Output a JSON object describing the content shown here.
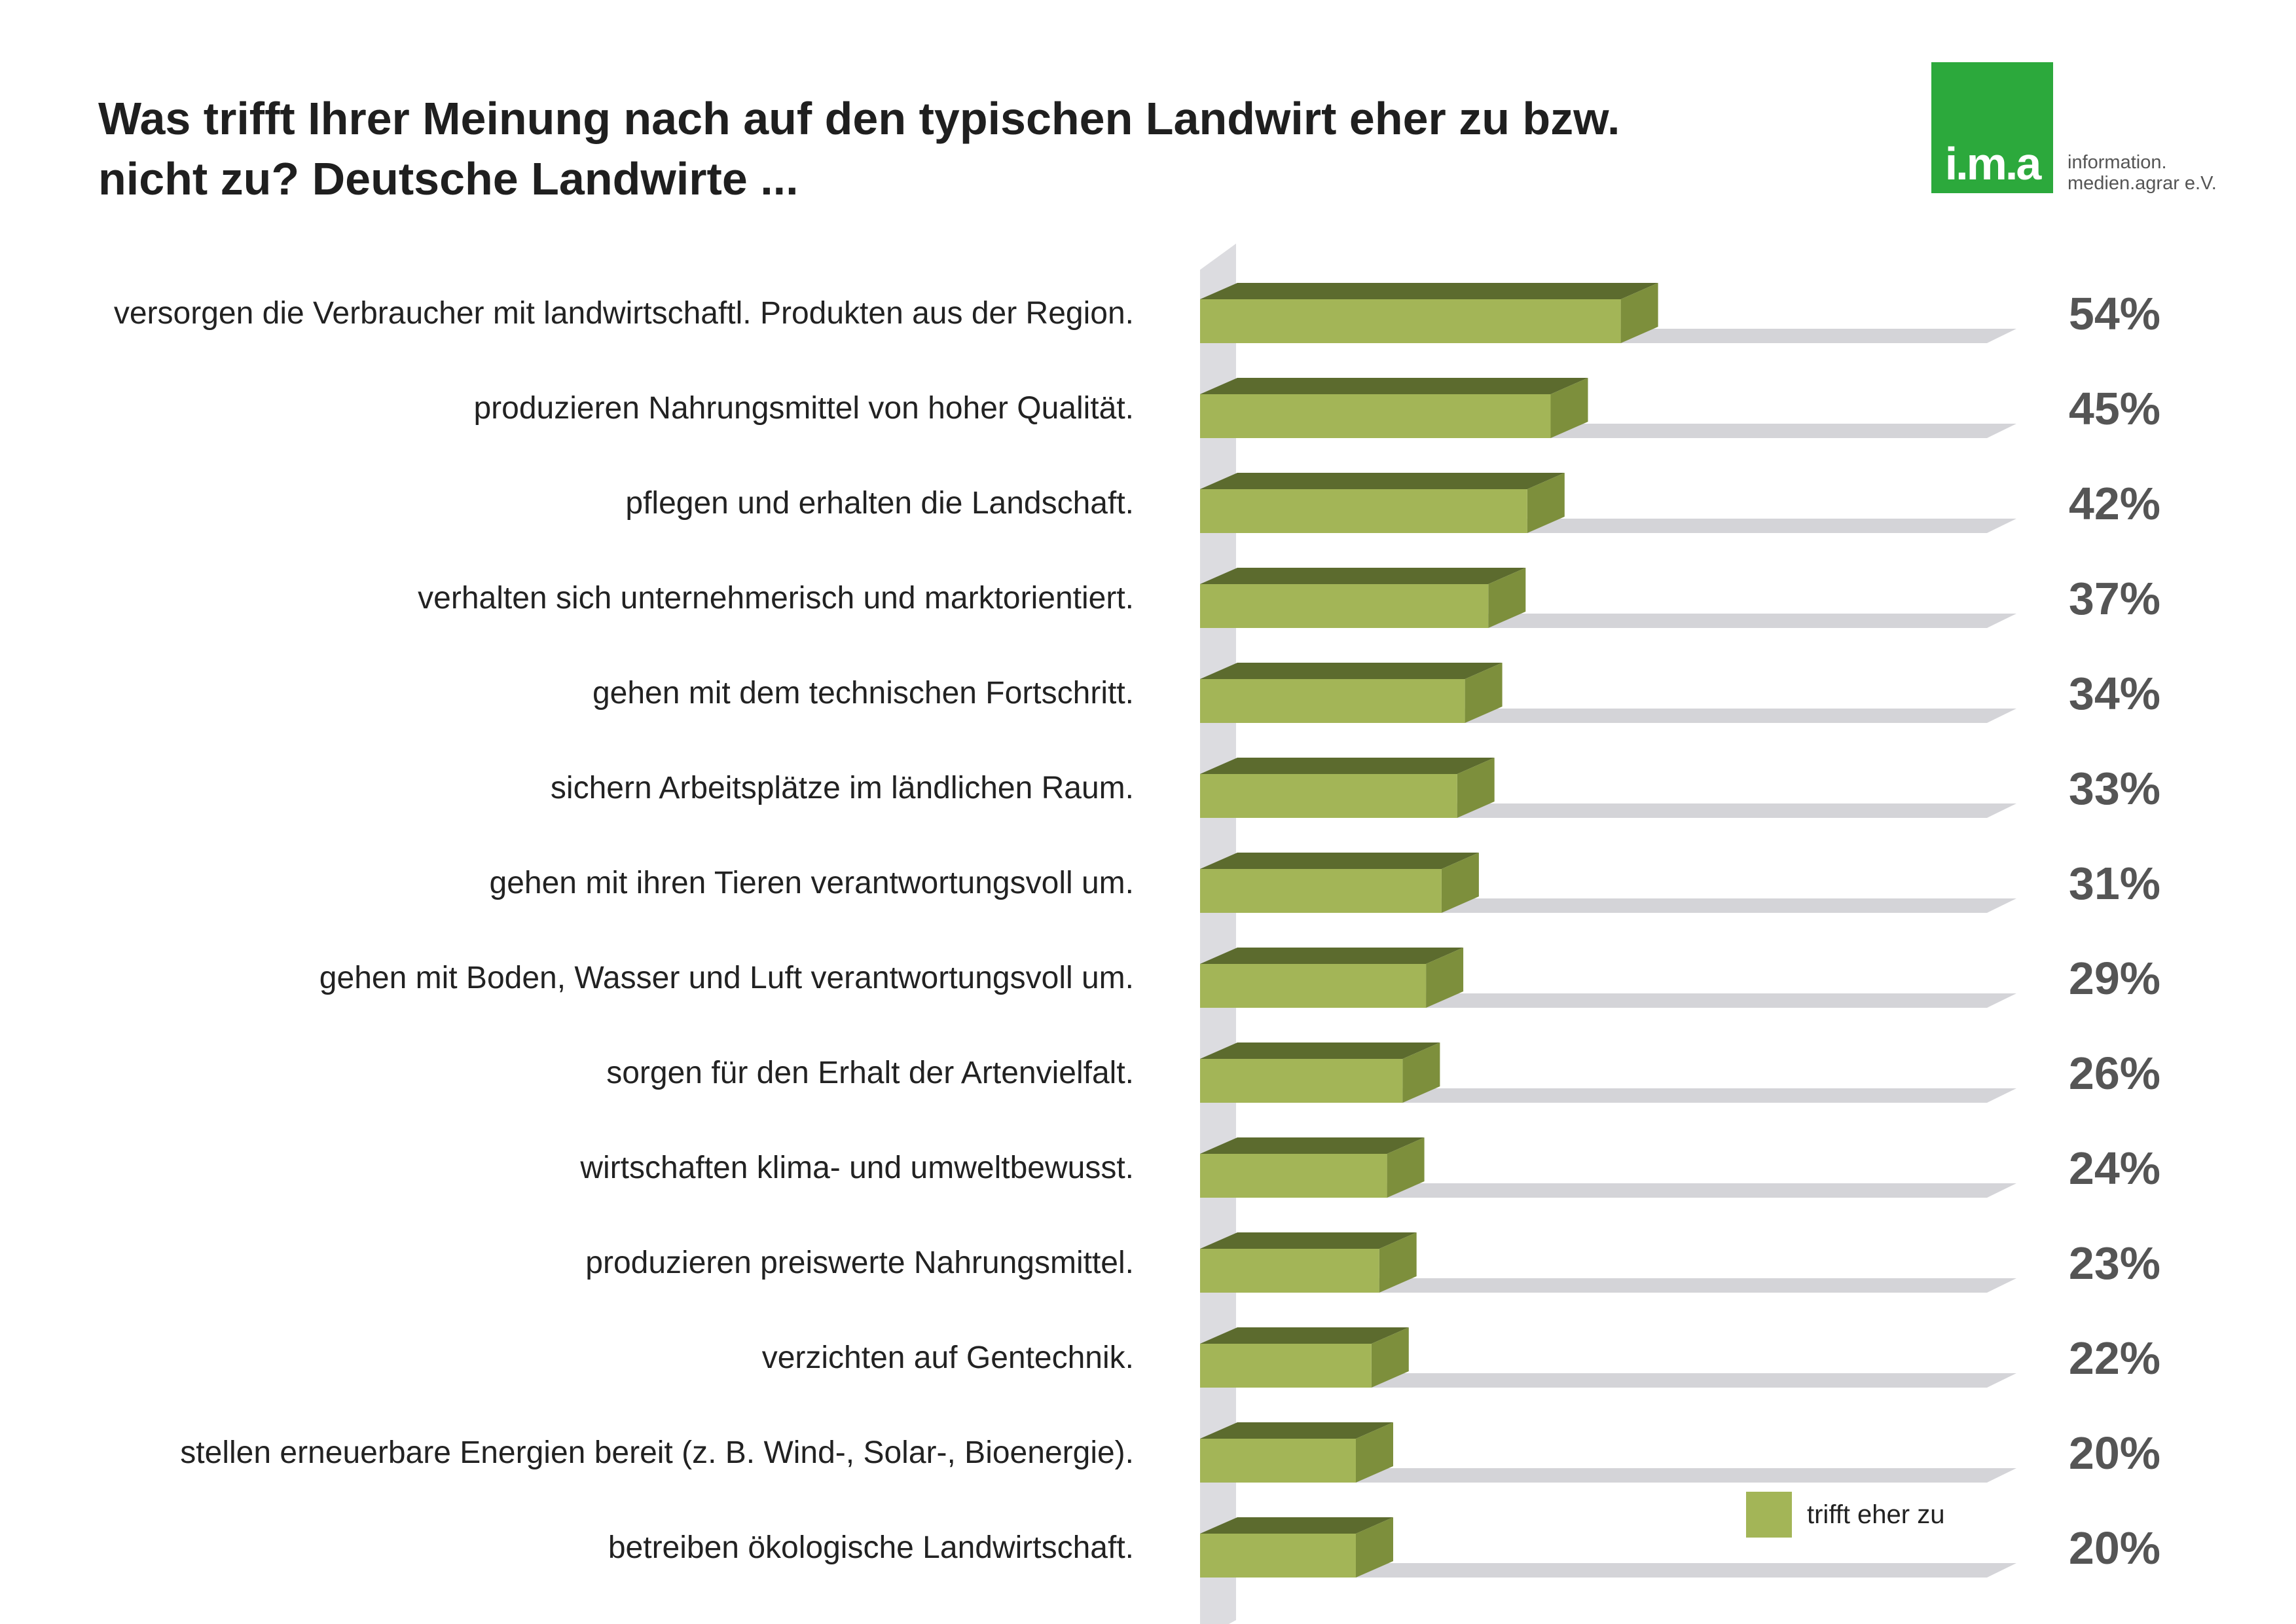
{
  "title": "Was trifft Ihrer Meinung nach auf den typischen Landwirt eher zu bzw. nicht zu? Deutsche Landwirte ...",
  "logo": {
    "mark": "i.m.a",
    "subtitle_line1": "information.",
    "subtitle_line2": "medien.agrar e.V.",
    "color": "#2ca93c"
  },
  "colors": {
    "bar_front": "#a3b557",
    "bar_top": "#5c6b2e",
    "bar_side": "#7d8f3c",
    "track": "#d4d4d8",
    "percent_text": "#555555"
  },
  "legend": {
    "label": "trifft eher zu",
    "position": "bottom-right"
  },
  "chart_data": {
    "type": "bar",
    "orientation": "horizontal",
    "style": "3d",
    "title": "Was trifft Ihrer Meinung nach auf den typischen Landwirt eher zu bzw. nicht zu? Deutsche Landwirte ...",
    "categories": [
      "versorgen die Verbraucher mit landwirtschaftl. Produkten aus der Region.",
      "produzieren Nahrungsmittel von hoher Qualität.",
      "pflegen und erhalten die Landschaft.",
      "verhalten sich unternehmerisch und marktorientiert.",
      "gehen mit dem technischen Fortschritt.",
      "sichern Arbeitsplätze im ländlichen Raum.",
      "gehen mit ihren Tieren verantwortungsvoll um.",
      "gehen mit Boden, Wasser und Luft verantwortungsvoll um.",
      "sorgen für den Erhalt der Artenvielfalt.",
      "wirtschaften klima- und umweltbewusst.",
      "produzieren preiswerte Nahrungsmittel.",
      "verzichten auf Gentechnik.",
      "stellen erneuerbare Energien bereit (z. B. Wind-, Solar-, Bioenergie).",
      "betreiben ökologische Landwirtschaft."
    ],
    "series": [
      {
        "name": "trifft eher zu",
        "values": [
          54,
          45,
          42,
          37,
          34,
          33,
          31,
          29,
          26,
          24,
          23,
          22,
          20,
          20
        ]
      }
    ],
    "value_labels": [
      "54%",
      "45%",
      "42%",
      "37%",
      "34%",
      "33%",
      "31%",
      "29%",
      "26%",
      "24%",
      "23%",
      "22%",
      "20%",
      "20%"
    ],
    "xlim": [
      0,
      100
    ],
    "grid": false,
    "legend_position": "bottom-right"
  }
}
